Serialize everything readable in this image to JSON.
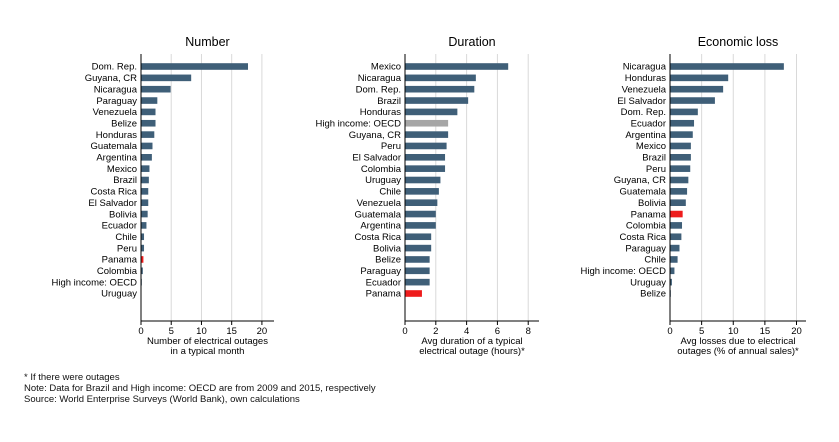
{
  "colors": {
    "bar": "#3f5f78",
    "highlight": "#ee1c1c",
    "oecd": "#a6a6a6",
    "grid": "#d9d9d9",
    "axis": "#000000"
  },
  "chart_data": [
    {
      "type": "bar",
      "orientation": "horizontal",
      "title": "Number",
      "xlabel": [
        "Number of electrical outages",
        "in a typical month"
      ],
      "xlim": [
        0,
        22
      ],
      "xticks": [
        0,
        5,
        10,
        15,
        20
      ],
      "grid": true,
      "categories": [
        "Dom. Rep.",
        "Guyana, CR",
        "Nicaragua",
        "Paraguay",
        "Venezuela",
        "Belize",
        "Honduras",
        "Guatemala",
        "Argentina",
        "Mexico",
        "Brazil",
        "Costa Rica",
        "El Salvador",
        "Bolivia",
        "Ecuador",
        "Chile",
        "Peru",
        "Panama",
        "Colombia",
        "High income: OECD",
        "Uruguay"
      ],
      "values": [
        17.7,
        8.3,
        4.9,
        2.7,
        2.4,
        2.4,
        2.2,
        1.9,
        1.8,
        1.4,
        1.3,
        1.2,
        1.2,
        1.1,
        0.9,
        0.5,
        0.5,
        0.4,
        0.3,
        0.1,
        0.0
      ],
      "highlight": [
        "Panama"
      ]
    },
    {
      "type": "bar",
      "orientation": "horizontal",
      "title": "Duration",
      "xlabel": [
        "Avg duration of a typical",
        "electrical outage (hours)*"
      ],
      "xlim": [
        0,
        8.7
      ],
      "xticks": [
        0,
        2,
        4,
        6,
        8
      ],
      "grid": true,
      "categories": [
        "Mexico",
        "Nicaragua",
        "Dom. Rep.",
        "Brazil",
        "Honduras",
        "High income: OECD",
        "Guyana, CR",
        "Peru",
        "El Salvador",
        "Colombia",
        "Uruguay",
        "Chile",
        "Venezuela",
        "Guatemala",
        "Argentina",
        "Costa Rica",
        "Bolivia",
        "Belize",
        "Paraguay",
        "Ecuador",
        "Panama"
      ],
      "values": [
        6.7,
        4.6,
        4.5,
        4.1,
        3.4,
        2.8,
        2.8,
        2.7,
        2.6,
        2.6,
        2.3,
        2.2,
        2.1,
        2.0,
        2.0,
        1.7,
        1.7,
        1.6,
        1.6,
        1.6,
        1.1
      ],
      "highlight": [
        "Panama"
      ],
      "reference": [
        "High income: OECD"
      ]
    },
    {
      "type": "bar",
      "orientation": "horizontal",
      "title": "Economic loss",
      "xlabel": [
        "Avg losses due to electrical",
        "outages (% of annual sales)*"
      ],
      "xlim": [
        0,
        21.5
      ],
      "xticks": [
        0,
        5,
        10,
        15,
        20
      ],
      "grid": true,
      "categories": [
        "Nicaragua",
        "Honduras",
        "Venezuela",
        "El Salvador",
        "Dom. Rep.",
        "Ecuador",
        "Argentina",
        "Mexico",
        "Brazil",
        "Peru",
        "Guyana, CR",
        "Guatemala",
        "Bolivia",
        "Panama",
        "Colombia",
        "Costa Rica",
        "Paraguay",
        "Chile",
        "High income: OECD",
        "Uruguay",
        "Belize"
      ],
      "values": [
        18.0,
        9.2,
        8.4,
        7.1,
        4.4,
        3.8,
        3.6,
        3.3,
        3.3,
        3.2,
        2.9,
        2.7,
        2.5,
        2.0,
        1.9,
        1.8,
        1.5,
        1.2,
        0.7,
        0.3,
        0.1
      ],
      "highlight": [
        "Panama"
      ]
    }
  ],
  "notes": [
    "* If there were outages",
    "Note: Data for Brazil and High income: OECD are from 2009 and 2015, respectively",
    "Source: World Enterprise Surveys (World Bank), own calculations"
  ]
}
